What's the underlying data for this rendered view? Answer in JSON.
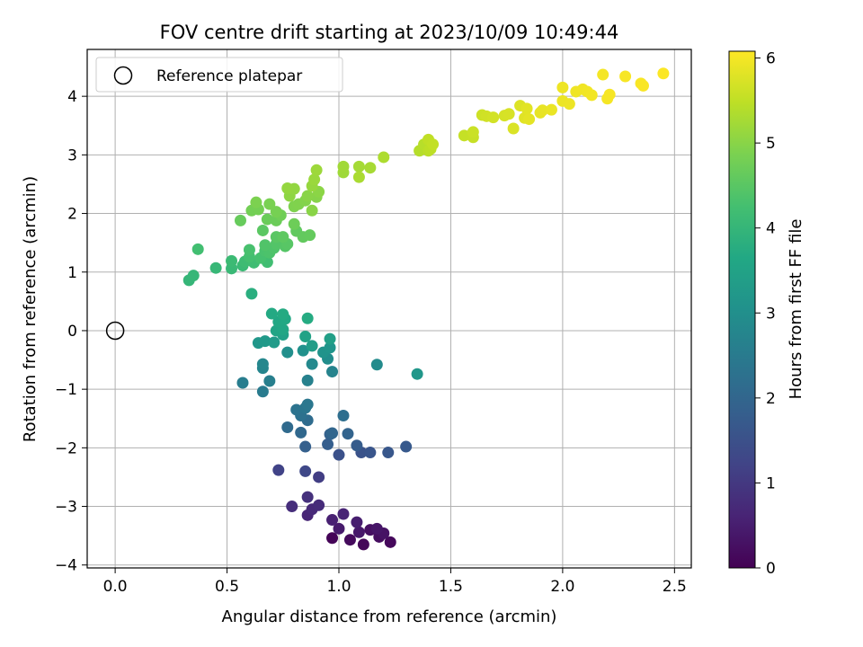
{
  "chart_data": {
    "type": "scatter",
    "title": "FOV centre drift starting at 2023/10/09 10:49:44",
    "xlabel": "Angular distance from reference (arcmin)",
    "ylabel": "Rotation from reference (arcmin)",
    "xlim": [
      -0.125,
      2.575
    ],
    "ylim": [
      -4.05,
      4.8
    ],
    "xticks": [
      0.0,
      0.5,
      1.0,
      1.5,
      2.0,
      2.5
    ],
    "xtick_labels": [
      "0.0",
      "0.5",
      "1.0",
      "1.5",
      "2.0",
      "2.5"
    ],
    "yticks": [
      -4,
      -3,
      -2,
      -1,
      0,
      1,
      2,
      3,
      4
    ],
    "ytick_labels": [
      "−4",
      "−3",
      "−2",
      "−1",
      "0",
      "1",
      "2",
      "3",
      "4"
    ],
    "grid": true,
    "legend": {
      "placement": "top-left",
      "entries": [
        "Reference platepar"
      ]
    },
    "reference_point": {
      "x": 0.0,
      "y": 0.0
    },
    "colorbar": {
      "label": "Hours from first FF file",
      "colormap": "viridis",
      "range": [
        0,
        6.08
      ],
      "ticks": [
        0,
        1,
        2,
        3,
        4,
        5,
        6
      ],
      "tick_labels": [
        "0",
        "1",
        "2",
        "3",
        "4",
        "5",
        "6"
      ]
    },
    "points": [
      {
        "x": 0.97,
        "y": -3.54,
        "c": 0.05
      },
      {
        "x": 1.11,
        "y": -3.65,
        "c": 0.1
      },
      {
        "x": 1.23,
        "y": -3.61,
        "c": 0.12
      },
      {
        "x": 1.05,
        "y": -3.57,
        "c": 0.15
      },
      {
        "x": 1.18,
        "y": -3.52,
        "c": 0.2
      },
      {
        "x": 1.14,
        "y": -3.4,
        "c": 0.25
      },
      {
        "x": 1.2,
        "y": -3.46,
        "c": 0.3
      },
      {
        "x": 1.17,
        "y": -3.38,
        "c": 0.35
      },
      {
        "x": 1.09,
        "y": -3.44,
        "c": 0.4
      },
      {
        "x": 1.0,
        "y": -3.38,
        "c": 0.45
      },
      {
        "x": 1.08,
        "y": -3.27,
        "c": 0.5
      },
      {
        "x": 0.97,
        "y": -3.23,
        "c": 0.55
      },
      {
        "x": 1.02,
        "y": -3.13,
        "c": 0.6
      },
      {
        "x": 0.86,
        "y": -3.15,
        "c": 0.65
      },
      {
        "x": 0.88,
        "y": -3.05,
        "c": 0.7
      },
      {
        "x": 0.91,
        "y": -2.98,
        "c": 0.75
      },
      {
        "x": 0.79,
        "y": -3.0,
        "c": 0.8
      },
      {
        "x": 0.86,
        "y": -2.84,
        "c": 0.85
      },
      {
        "x": 0.91,
        "y": -2.5,
        "c": 1.1
      },
      {
        "x": 0.73,
        "y": -2.38,
        "c": 1.2
      },
      {
        "x": 0.85,
        "y": -2.4,
        "c": 1.3
      },
      {
        "x": 1.0,
        "y": -2.12,
        "c": 1.5
      },
      {
        "x": 1.1,
        "y": -2.08,
        "c": 1.55
      },
      {
        "x": 1.14,
        "y": -2.08,
        "c": 1.6
      },
      {
        "x": 1.22,
        "y": -2.08,
        "c": 1.65
      },
      {
        "x": 1.3,
        "y": -1.98,
        "c": 1.7
      },
      {
        "x": 1.08,
        "y": -1.96,
        "c": 1.75
      },
      {
        "x": 0.95,
        "y": -1.94,
        "c": 1.8
      },
      {
        "x": 0.85,
        "y": -1.98,
        "c": 1.85
      },
      {
        "x": 0.96,
        "y": -1.77,
        "c": 1.9
      },
      {
        "x": 1.04,
        "y": -1.76,
        "c": 1.95
      },
      {
        "x": 0.97,
        "y": -1.75,
        "c": 2.0
      },
      {
        "x": 0.83,
        "y": -1.74,
        "c": 2.05
      },
      {
        "x": 0.77,
        "y": -1.65,
        "c": 2.1
      },
      {
        "x": 0.86,
        "y": -1.53,
        "c": 2.15
      },
      {
        "x": 1.02,
        "y": -1.45,
        "c": 2.2
      },
      {
        "x": 0.83,
        "y": -1.45,
        "c": 2.25
      },
      {
        "x": 0.81,
        "y": -1.35,
        "c": 2.3
      },
      {
        "x": 0.85,
        "y": -1.32,
        "c": 2.35
      },
      {
        "x": 0.86,
        "y": -1.26,
        "c": 2.4
      },
      {
        "x": 0.66,
        "y": -1.04,
        "c": 2.5
      },
      {
        "x": 0.57,
        "y": -0.89,
        "c": 2.55
      },
      {
        "x": 0.69,
        "y": -0.86,
        "c": 2.6
      },
      {
        "x": 0.86,
        "y": -0.85,
        "c": 2.65
      },
      {
        "x": 0.97,
        "y": -0.7,
        "c": 2.7
      },
      {
        "x": 0.66,
        "y": -0.64,
        "c": 2.75
      },
      {
        "x": 0.66,
        "y": -0.57,
        "c": 2.8
      },
      {
        "x": 0.88,
        "y": -0.57,
        "c": 2.85
      },
      {
        "x": 1.17,
        "y": -0.58,
        "c": 2.9
      },
      {
        "x": 0.95,
        "y": -0.48,
        "c": 2.95
      },
      {
        "x": 0.77,
        "y": -0.37,
        "c": 3.0
      },
      {
        "x": 0.84,
        "y": -0.34,
        "c": 3.05
      },
      {
        "x": 0.93,
        "y": -0.37,
        "c": 3.1
      },
      {
        "x": 0.96,
        "y": -0.29,
        "c": 3.15
      },
      {
        "x": 0.64,
        "y": -0.21,
        "c": 3.2
      },
      {
        "x": 0.67,
        "y": -0.18,
        "c": 3.25
      },
      {
        "x": 0.71,
        "y": -0.2,
        "c": 3.3
      },
      {
        "x": 0.88,
        "y": -0.26,
        "c": 3.35
      },
      {
        "x": 0.96,
        "y": -0.14,
        "c": 3.4
      },
      {
        "x": 0.75,
        "y": -0.07,
        "c": 3.45
      },
      {
        "x": 0.85,
        "y": -0.1,
        "c": 3.5
      },
      {
        "x": 0.72,
        "y": 0.0,
        "c": 3.55
      },
      {
        "x": 0.75,
        "y": 0.02,
        "c": 3.6
      },
      {
        "x": 0.73,
        "y": 0.15,
        "c": 3.62
      },
      {
        "x": 0.76,
        "y": 0.2,
        "c": 3.65
      },
      {
        "x": 0.7,
        "y": 0.29,
        "c": 3.68
      },
      {
        "x": 0.75,
        "y": 0.28,
        "c": 3.7
      },
      {
        "x": 0.86,
        "y": 0.21,
        "c": 3.72
      },
      {
        "x": 1.35,
        "y": -0.74,
        "c": 3.2
      },
      {
        "x": 0.61,
        "y": 0.63,
        "c": 3.8
      },
      {
        "x": 0.33,
        "y": 0.86,
        "c": 4.0
      },
      {
        "x": 0.35,
        "y": 0.94,
        "c": 4.02
      },
      {
        "x": 0.45,
        "y": 1.07,
        "c": 4.05
      },
      {
        "x": 0.52,
        "y": 1.06,
        "c": 4.08
      },
      {
        "x": 0.57,
        "y": 1.11,
        "c": 4.1
      },
      {
        "x": 0.52,
        "y": 1.19,
        "c": 4.12
      },
      {
        "x": 0.58,
        "y": 1.18,
        "c": 4.15
      },
      {
        "x": 0.62,
        "y": 1.16,
        "c": 4.18
      },
      {
        "x": 0.68,
        "y": 1.17,
        "c": 4.2
      },
      {
        "x": 0.37,
        "y": 1.39,
        "c": 4.22
      },
      {
        "x": 0.6,
        "y": 1.26,
        "c": 4.25
      },
      {
        "x": 0.65,
        "y": 1.24,
        "c": 4.28
      },
      {
        "x": 0.6,
        "y": 1.38,
        "c": 4.3
      },
      {
        "x": 0.67,
        "y": 1.36,
        "c": 4.32
      },
      {
        "x": 0.69,
        "y": 1.33,
        "c": 4.35
      },
      {
        "x": 0.71,
        "y": 1.41,
        "c": 4.38
      },
      {
        "x": 0.67,
        "y": 1.46,
        "c": 4.4
      },
      {
        "x": 0.72,
        "y": 1.48,
        "c": 4.42
      },
      {
        "x": 0.76,
        "y": 1.44,
        "c": 4.45
      },
      {
        "x": 0.77,
        "y": 1.48,
        "c": 4.48
      },
      {
        "x": 0.72,
        "y": 1.6,
        "c": 4.5
      },
      {
        "x": 0.66,
        "y": 1.71,
        "c": 4.52
      },
      {
        "x": 0.75,
        "y": 1.6,
        "c": 4.55
      },
      {
        "x": 0.81,
        "y": 1.7,
        "c": 4.58
      },
      {
        "x": 0.84,
        "y": 1.6,
        "c": 4.6
      },
      {
        "x": 0.87,
        "y": 1.63,
        "c": 4.62
      },
      {
        "x": 0.56,
        "y": 1.88,
        "c": 4.65
      },
      {
        "x": 0.68,
        "y": 1.9,
        "c": 4.68
      },
      {
        "x": 0.72,
        "y": 1.88,
        "c": 4.7
      },
      {
        "x": 0.8,
        "y": 1.82,
        "c": 4.72
      },
      {
        "x": 0.74,
        "y": 1.97,
        "c": 4.75
      },
      {
        "x": 0.61,
        "y": 2.05,
        "c": 4.78
      },
      {
        "x": 0.64,
        "y": 2.07,
        "c": 4.8
      },
      {
        "x": 0.72,
        "y": 2.03,
        "c": 4.82
      },
      {
        "x": 0.69,
        "y": 2.16,
        "c": 4.85
      },
      {
        "x": 0.63,
        "y": 2.19,
        "c": 4.88
      },
      {
        "x": 0.8,
        "y": 2.12,
        "c": 4.9
      },
      {
        "x": 0.82,
        "y": 2.16,
        "c": 4.92
      },
      {
        "x": 0.85,
        "y": 2.22,
        "c": 4.95
      },
      {
        "x": 0.9,
        "y": 2.28,
        "c": 4.97
      },
      {
        "x": 0.86,
        "y": 2.3,
        "c": 5.0
      },
      {
        "x": 0.91,
        "y": 2.37,
        "c": 5.02
      },
      {
        "x": 0.78,
        "y": 2.3,
        "c": 5.05
      },
      {
        "x": 0.8,
        "y": 2.42,
        "c": 5.08
      },
      {
        "x": 0.77,
        "y": 2.43,
        "c": 5.1
      },
      {
        "x": 0.88,
        "y": 2.47,
        "c": 5.12
      },
      {
        "x": 0.89,
        "y": 2.58,
        "c": 5.15
      },
      {
        "x": 0.9,
        "y": 2.74,
        "c": 5.18
      },
      {
        "x": 0.88,
        "y": 2.05,
        "c": 5.0
      },
      {
        "x": 1.02,
        "y": 2.7,
        "c": 5.2
      },
      {
        "x": 1.02,
        "y": 2.8,
        "c": 5.22
      },
      {
        "x": 1.09,
        "y": 2.8,
        "c": 5.25
      },
      {
        "x": 1.14,
        "y": 2.78,
        "c": 5.27
      },
      {
        "x": 1.09,
        "y": 2.62,
        "c": 5.3
      },
      {
        "x": 1.2,
        "y": 2.96,
        "c": 5.33
      },
      {
        "x": 1.36,
        "y": 3.07,
        "c": 5.4
      },
      {
        "x": 1.38,
        "y": 3.18,
        "c": 5.42
      },
      {
        "x": 1.4,
        "y": 3.07,
        "c": 5.45
      },
      {
        "x": 1.41,
        "y": 3.1,
        "c": 5.47
      },
      {
        "x": 1.4,
        "y": 3.26,
        "c": 5.5
      },
      {
        "x": 1.42,
        "y": 3.18,
        "c": 5.52
      },
      {
        "x": 1.56,
        "y": 3.33,
        "c": 5.55
      },
      {
        "x": 1.6,
        "y": 3.3,
        "c": 5.57
      },
      {
        "x": 1.6,
        "y": 3.39,
        "c": 5.6
      },
      {
        "x": 1.64,
        "y": 3.68,
        "c": 5.62
      },
      {
        "x": 1.66,
        "y": 3.66,
        "c": 5.65
      },
      {
        "x": 1.69,
        "y": 3.64,
        "c": 5.67
      },
      {
        "x": 1.74,
        "y": 3.67,
        "c": 5.7
      },
      {
        "x": 1.76,
        "y": 3.7,
        "c": 5.72
      },
      {
        "x": 1.78,
        "y": 3.45,
        "c": 5.75
      },
      {
        "x": 1.81,
        "y": 3.84,
        "c": 5.77
      },
      {
        "x": 1.83,
        "y": 3.63,
        "c": 5.8
      },
      {
        "x": 1.84,
        "y": 3.79,
        "c": 5.82
      },
      {
        "x": 1.85,
        "y": 3.61,
        "c": 5.84
      },
      {
        "x": 1.9,
        "y": 3.72,
        "c": 5.86
      },
      {
        "x": 1.91,
        "y": 3.76,
        "c": 5.88
      },
      {
        "x": 1.95,
        "y": 3.77,
        "c": 5.9
      },
      {
        "x": 2.0,
        "y": 3.92,
        "c": 5.92
      },
      {
        "x": 2.03,
        "y": 3.87,
        "c": 5.93
      },
      {
        "x": 2.0,
        "y": 4.15,
        "c": 5.94
      },
      {
        "x": 2.06,
        "y": 4.08,
        "c": 5.95
      },
      {
        "x": 2.09,
        "y": 4.12,
        "c": 5.96
      },
      {
        "x": 2.11,
        "y": 4.08,
        "c": 5.97
      },
      {
        "x": 2.13,
        "y": 4.02,
        "c": 5.98
      },
      {
        "x": 2.18,
        "y": 4.37,
        "c": 5.99
      },
      {
        "x": 2.2,
        "y": 3.96,
        "c": 6.0
      },
      {
        "x": 2.21,
        "y": 4.03,
        "c": 6.01
      },
      {
        "x": 2.28,
        "y": 4.34,
        "c": 6.02
      },
      {
        "x": 2.35,
        "y": 4.22,
        "c": 6.03
      },
      {
        "x": 2.36,
        "y": 4.18,
        "c": 6.04
      },
      {
        "x": 2.45,
        "y": 4.39,
        "c": 6.06
      }
    ]
  }
}
